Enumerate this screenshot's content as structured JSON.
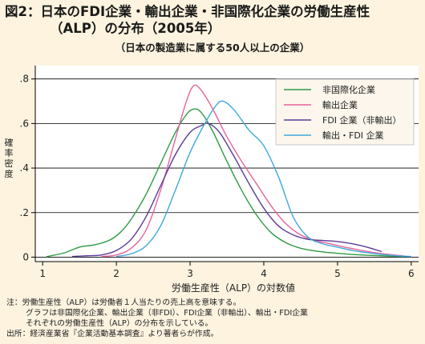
{
  "title_line1": "図2：日本のFDI企業・輸出企業・非国際化企業の労働生産性",
  "title_line2": "（ALP）の分布（2005年）",
  "subtitle": "（日本の製造業に属する50人以上の企業）",
  "notes": {
    "line1": "注：労働生産性（ALP）は労働者１人当たりの売上高を意味する。",
    "line2": "グラフは非国際化企業、輸出企業（非FDI）、FDI企業（非輸出）、輸出・FDI企業",
    "line3": "それぞれの労働生産性（ALP）の分布を示している。",
    "source": "出所：経済産業省『企業活動基本調査』より著者らが作成。"
  },
  "chart_data": {
    "type": "line",
    "title": "図2：日本のFDI企業・輸出企業・非国際化企業の労働生産性（ALP）の分布（2005年）",
    "subtitle": "（日本の製造業に属する50人以上の企業）",
    "xlabel": "労働生産性（ALP）の対数値",
    "ylabel": "確率密度",
    "xlim": [
      0.9,
      6.1
    ],
    "ylim": [
      -0.02,
      0.86
    ],
    "xticks": [
      1,
      2,
      3,
      4,
      5,
      6
    ],
    "yticks": [
      0,
      0.2,
      0.4,
      0.6,
      0.8
    ],
    "ytick_labels": [
      "0",
      ".2",
      ".4",
      ".6",
      ".8"
    ],
    "grid": true,
    "legend_position": "top-right",
    "series": [
      {
        "name": "非国際化企業",
        "color": "#2e9a44",
        "points": [
          [
            1.05,
            0.002
          ],
          [
            1.3,
            0.02
          ],
          [
            1.5,
            0.045
          ],
          [
            1.7,
            0.055
          ],
          [
            1.9,
            0.075
          ],
          [
            2.05,
            0.11
          ],
          [
            2.2,
            0.17
          ],
          [
            2.4,
            0.28
          ],
          [
            2.6,
            0.42
          ],
          [
            2.8,
            0.56
          ],
          [
            2.95,
            0.64
          ],
          [
            3.05,
            0.665
          ],
          [
            3.15,
            0.65
          ],
          [
            3.3,
            0.57
          ],
          [
            3.5,
            0.43
          ],
          [
            3.7,
            0.3
          ],
          [
            3.9,
            0.19
          ],
          [
            4.1,
            0.11
          ],
          [
            4.3,
            0.065
          ],
          [
            4.5,
            0.04
          ],
          [
            4.7,
            0.028
          ],
          [
            4.9,
            0.02
          ],
          [
            5.2,
            0.012
          ],
          [
            5.5,
            0.007
          ],
          [
            5.9,
            0.003
          ]
        ]
      },
      {
        "name": "輸出企業",
        "color": "#e8649a",
        "points": [
          [
            1.8,
            0.003
          ],
          [
            2.0,
            0.01
          ],
          [
            2.2,
            0.04
          ],
          [
            2.4,
            0.12
          ],
          [
            2.6,
            0.3
          ],
          [
            2.8,
            0.53
          ],
          [
            2.95,
            0.7
          ],
          [
            3.05,
            0.77
          ],
          [
            3.15,
            0.75
          ],
          [
            3.3,
            0.67
          ],
          [
            3.5,
            0.54
          ],
          [
            3.7,
            0.43
          ],
          [
            3.9,
            0.33
          ],
          [
            4.1,
            0.23
          ],
          [
            4.3,
            0.15
          ],
          [
            4.5,
            0.1
          ],
          [
            4.7,
            0.075
          ],
          [
            4.9,
            0.06
          ],
          [
            5.1,
            0.045
          ],
          [
            5.3,
            0.032
          ],
          [
            5.5,
            0.02
          ],
          [
            5.7,
            0.012
          ],
          [
            5.9,
            0.006
          ]
        ]
      },
      {
        "name": "FDI 企業（非輸出）",
        "color": "#5a3a98",
        "points": [
          [
            1.4,
            0.003
          ],
          [
            1.6,
            0.006
          ],
          [
            1.8,
            0.01
          ],
          [
            2.0,
            0.03
          ],
          [
            2.2,
            0.08
          ],
          [
            2.4,
            0.18
          ],
          [
            2.6,
            0.32
          ],
          [
            2.8,
            0.46
          ],
          [
            3.0,
            0.56
          ],
          [
            3.15,
            0.59
          ],
          [
            3.25,
            0.6
          ],
          [
            3.4,
            0.56
          ],
          [
            3.6,
            0.45
          ],
          [
            3.8,
            0.33
          ],
          [
            4.0,
            0.22
          ],
          [
            4.2,
            0.14
          ],
          [
            4.4,
            0.1
          ],
          [
            4.6,
            0.08
          ],
          [
            4.8,
            0.075
          ],
          [
            5.0,
            0.07
          ],
          [
            5.2,
            0.06
          ],
          [
            5.4,
            0.045
          ],
          [
            5.6,
            0.025
          ]
        ]
      },
      {
        "name": "輸出・FDI 企業",
        "color": "#3ea9dc",
        "points": [
          [
            2.0,
            0.003
          ],
          [
            2.2,
            0.015
          ],
          [
            2.4,
            0.05
          ],
          [
            2.6,
            0.14
          ],
          [
            2.8,
            0.3
          ],
          [
            3.0,
            0.47
          ],
          [
            3.2,
            0.6
          ],
          [
            3.35,
            0.68
          ],
          [
            3.45,
            0.7
          ],
          [
            3.6,
            0.66
          ],
          [
            3.8,
            0.57
          ],
          [
            4.0,
            0.5
          ],
          [
            4.2,
            0.36
          ],
          [
            4.4,
            0.18
          ],
          [
            4.6,
            0.09
          ],
          [
            4.8,
            0.06
          ],
          [
            5.0,
            0.045
          ],
          [
            5.2,
            0.03
          ],
          [
            5.4,
            0.02
          ],
          [
            5.6,
            0.012
          ],
          [
            5.8,
            0.006
          ],
          [
            6.0,
            0.003
          ]
        ]
      }
    ]
  }
}
